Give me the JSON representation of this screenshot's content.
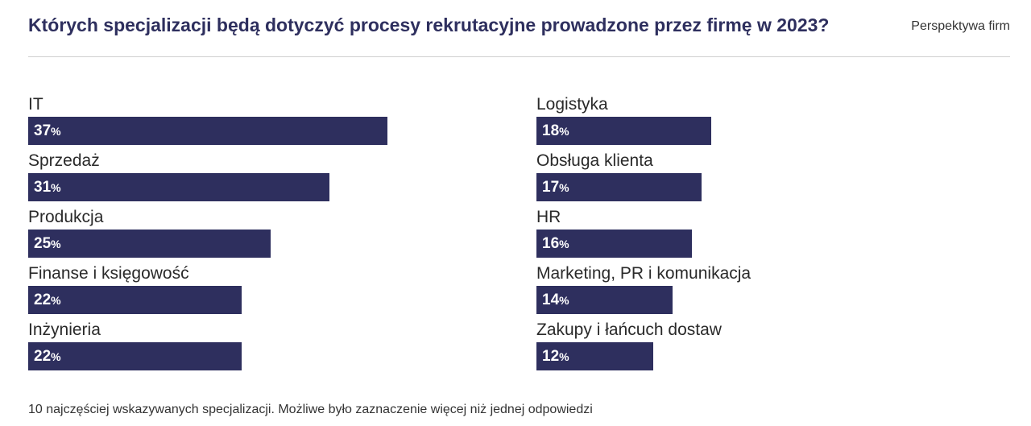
{
  "header": {
    "title": "Których specjalizacji będą dotyczyć procesy rekrutacyjne prowadzone przez firmę w 2023?",
    "tag": "Perspektywa firm"
  },
  "footnote": "10 najczęściej wskazywanych specjalizacji. Możliwe było zaznaczenie więcej niż jednej odpowiedzi",
  "colors": {
    "bar": "#2e2f5e",
    "title": "#2e2f5e",
    "bar_text": "#ffffff"
  },
  "chart_data": {
    "type": "bar",
    "orientation": "horizontal",
    "unit": "%",
    "categories": [
      "IT",
      "Sprzedaż",
      "Produkcja",
      "Finanse i księgowość",
      "Inżynieria",
      "Logistyka",
      "Obsługa klienta",
      "HR",
      "Marketing, PR i komunikacja",
      "Zakupy i łańcuch dostaw"
    ],
    "values": [
      37,
      31,
      25,
      22,
      22,
      18,
      17,
      16,
      14,
      12
    ],
    "columns": [
      [
        "IT",
        "Sprzedaż",
        "Produkcja",
        "Finanse i księgowość",
        "Inżynieria"
      ],
      [
        "Logistyka",
        "Obsługa klienta",
        "HR",
        "Marketing, PR i komunikacja",
        "Zakupy i łańcuch dostaw"
      ]
    ],
    "title": "",
    "xlabel": "",
    "ylabel": "",
    "grid": false,
    "legend": "none"
  }
}
